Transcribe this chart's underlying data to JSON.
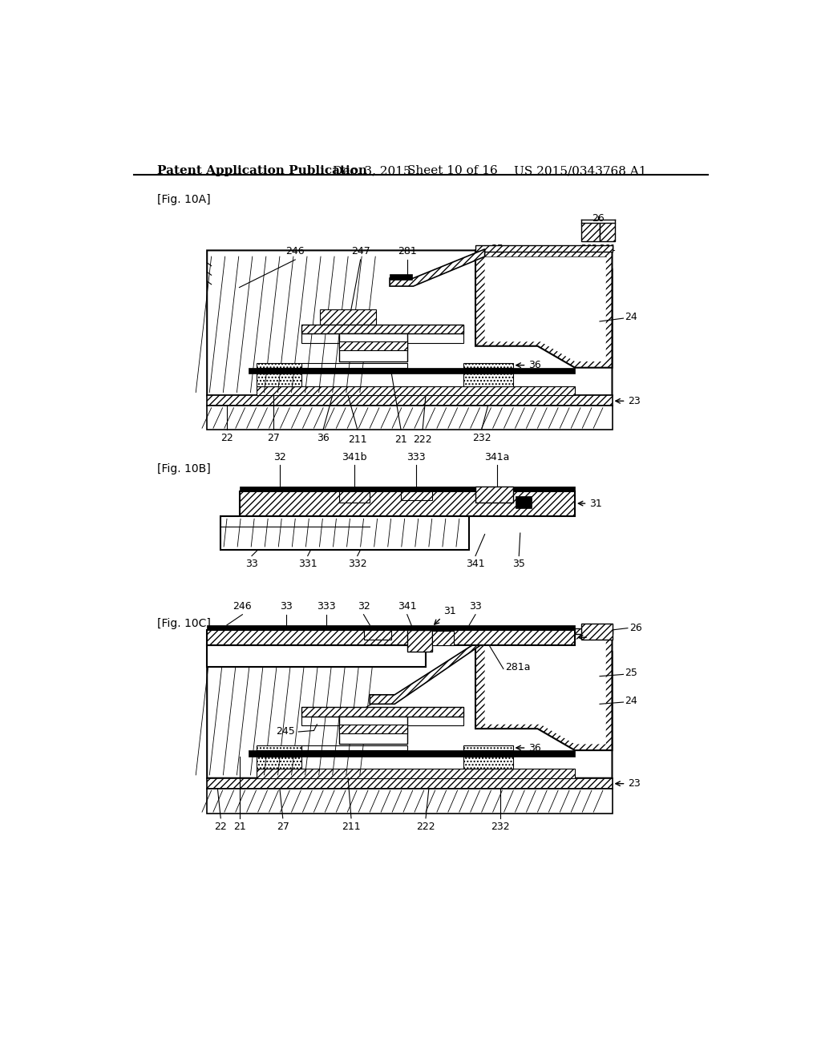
{
  "bg_color": "#ffffff",
  "header_text": "Patent Application Publication",
  "header_date": "Dec. 3, 2015",
  "header_sheet": "Sheet 10 of 16",
  "header_patent": "US 2015/0343768 A1",
  "line_color": "#000000"
}
